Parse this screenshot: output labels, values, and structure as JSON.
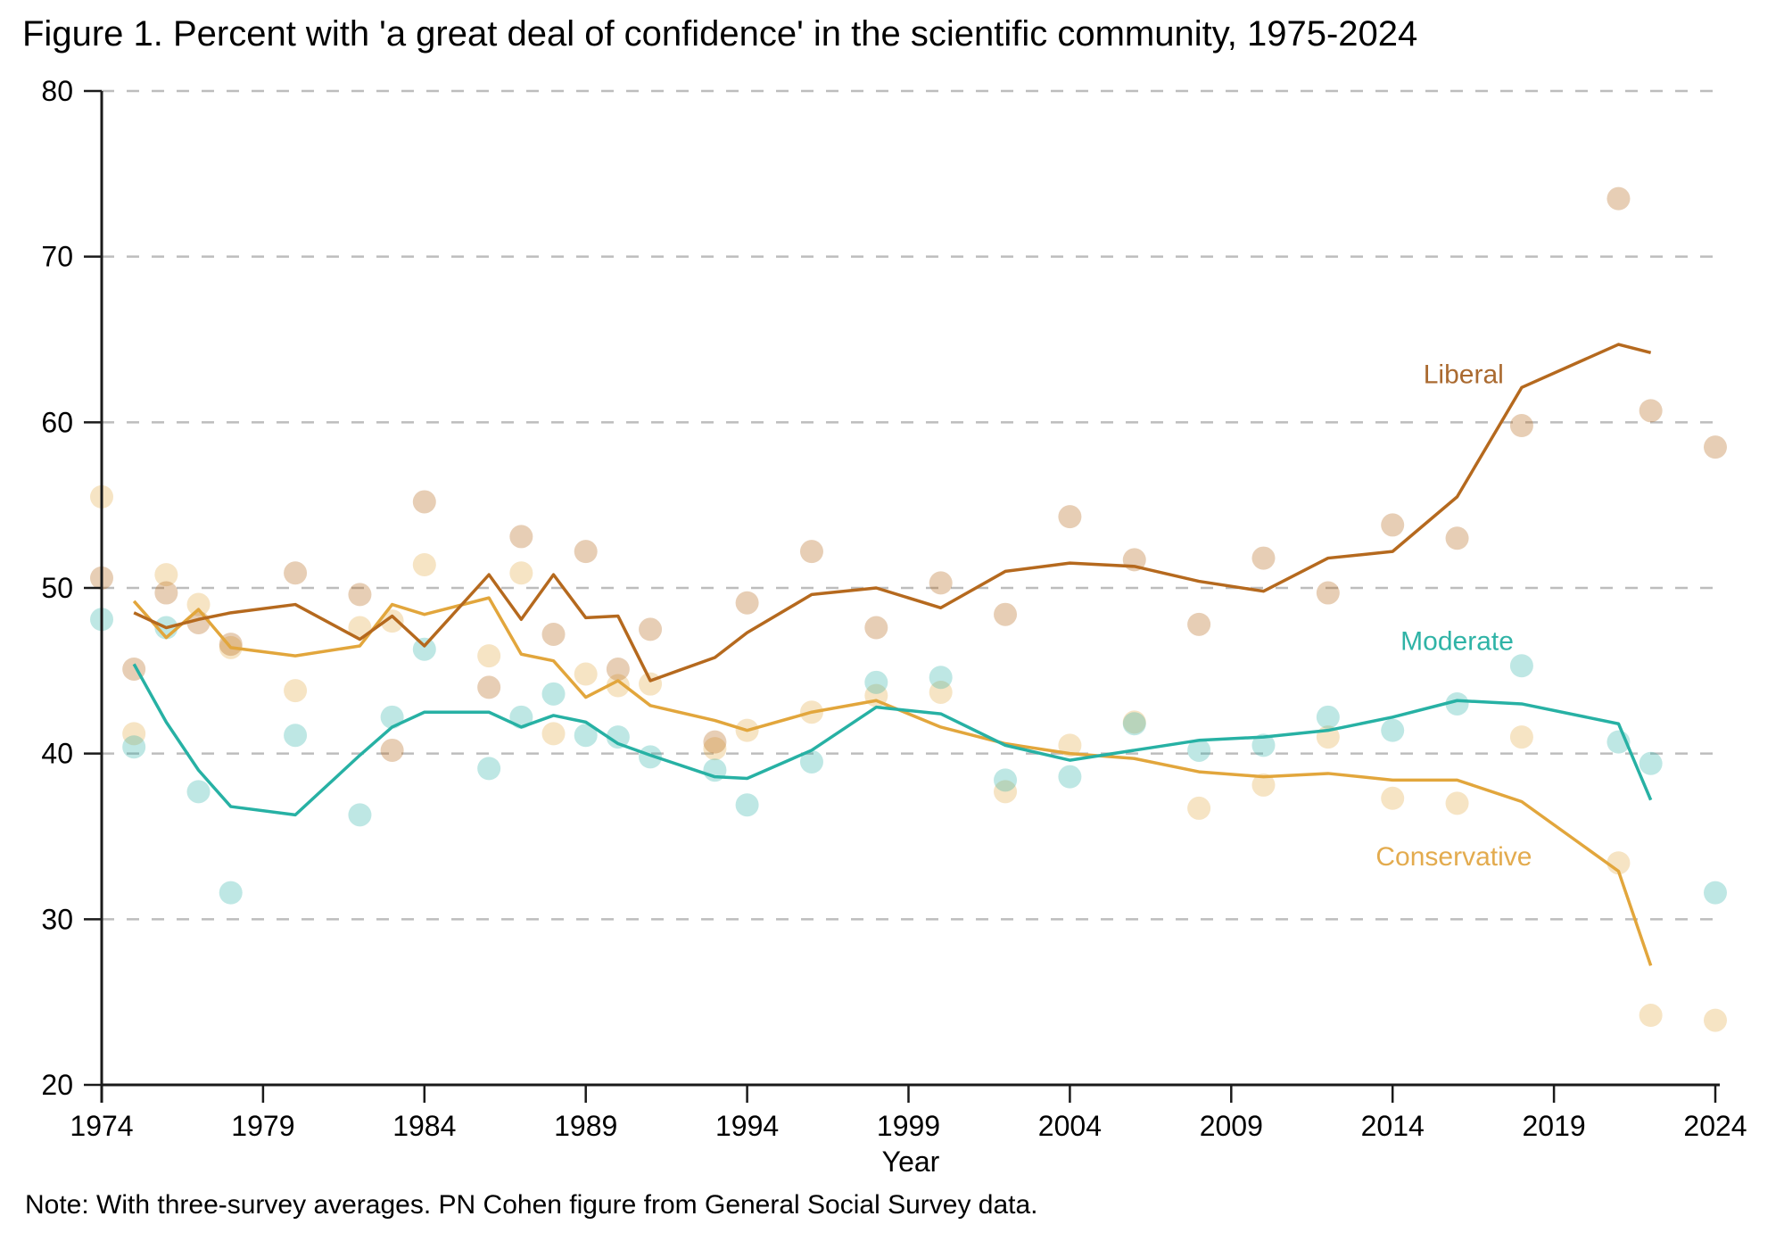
{
  "chart_data": {
    "type": "scatter+line",
    "title": "Figure 1. Percent with 'a great deal of confidence' in the scientific community, 1975-2024",
    "note": "Note: With three-survey averages. PN Cohen figure from General Social Survey data.",
    "xlabel": "Year",
    "ylabel": "",
    "xlim": [
      1974,
      2024.3
    ],
    "ylim": [
      20,
      80
    ],
    "x_ticks": [
      1974,
      1979,
      1984,
      1989,
      1994,
      1999,
      2004,
      2009,
      2014,
      2019,
      2024
    ],
    "y_ticks": [
      20,
      30,
      40,
      50,
      60,
      70,
      80
    ],
    "grid": "horizontal-dashed",
    "legend_position": "inline-right",
    "years": [
      1974,
      1975,
      1976,
      1977,
      1978,
      1980,
      1982,
      1983,
      1984,
      1986,
      1987,
      1988,
      1989,
      1990,
      1991,
      1993,
      1994,
      1996,
      1998,
      2000,
      2002,
      2004,
      2006,
      2008,
      2010,
      2012,
      2014,
      2016,
      2018,
      2021,
      2022,
      2024
    ],
    "line_years": [
      1975,
      1976,
      1977,
      1978,
      1980,
      1982,
      1983,
      1984,
      1986,
      1987,
      1988,
      1989,
      1990,
      1991,
      1993,
      1994,
      1996,
      1998,
      2000,
      2002,
      2004,
      2006,
      2008,
      2010,
      2012,
      2014,
      2016,
      2018,
      2021,
      2022
    ],
    "series": [
      {
        "name": "Conservative",
        "line_color": "#e2a63c",
        "dot_color": "rgba(226,166,60,0.30)",
        "label_color": "#e3ab4e",
        "label_anchor": {
          "year": 2015.9,
          "value": 33.8
        },
        "dot_values": [
          55.5,
          41.2,
          50.8,
          49.0,
          46.4,
          43.8,
          47.6,
          48.0,
          51.4,
          45.9,
          50.9,
          41.2,
          44.8,
          44.1,
          44.2,
          40.3,
          41.4,
          42.5,
          43.5,
          43.7,
          37.7,
          40.5,
          41.9,
          36.7,
          38.1,
          41.0,
          37.3,
          37.0,
          41.0,
          33.4,
          24.2,
          23.9
        ],
        "line_values": [
          49.2,
          47.0,
          48.7,
          46.4,
          45.9,
          46.5,
          49.0,
          48.4,
          49.4,
          46.0,
          45.6,
          43.4,
          44.4,
          42.9,
          42.0,
          41.4,
          42.5,
          43.2,
          41.6,
          40.6,
          40.0,
          39.7,
          38.9,
          38.6,
          38.8,
          38.4,
          38.4,
          37.1,
          32.9,
          27.2
        ]
      },
      {
        "name": "Moderate",
        "line_color": "#27b1a4",
        "dot_color": "rgba(39,177,164,0.30)",
        "label_color": "#2fb3a6",
        "label_anchor": {
          "year": 2016.0,
          "value": 46.8
        },
        "dot_values": [
          48.1,
          40.4,
          47.6,
          37.7,
          31.6,
          41.1,
          36.3,
          42.2,
          46.3,
          39.1,
          42.2,
          43.6,
          41.1,
          41.0,
          39.8,
          39.0,
          36.9,
          39.5,
          44.3,
          44.6,
          38.4,
          38.6,
          41.8,
          40.2,
          40.5,
          42.2,
          41.4,
          43.0,
          45.3,
          40.7,
          39.4,
          31.6
        ],
        "line_values": [
          45.4,
          41.9,
          39.0,
          36.8,
          36.3,
          39.9,
          41.6,
          42.5,
          42.5,
          41.6,
          42.3,
          41.9,
          40.6,
          39.9,
          38.6,
          38.5,
          40.2,
          42.8,
          42.4,
          40.5,
          39.6,
          40.2,
          40.8,
          41.0,
          41.4,
          42.2,
          43.2,
          43.0,
          41.8,
          37.2
        ]
      },
      {
        "name": "Liberal",
        "line_color": "#b5691e",
        "dot_color": "rgba(181,105,30,0.33)",
        "label_color": "#aa6a30",
        "label_anchor": {
          "year": 2016.2,
          "value": 62.9
        },
        "dot_values": [
          50.6,
          45.1,
          49.7,
          47.9,
          46.6,
          50.9,
          49.6,
          40.2,
          55.2,
          44.0,
          53.1,
          47.2,
          52.2,
          45.1,
          47.5,
          40.7,
          49.1,
          52.2,
          47.6,
          50.3,
          48.4,
          54.3,
          51.7,
          47.8,
          51.8,
          49.7,
          53.8,
          53.0,
          59.8,
          73.5,
          60.7,
          58.5
        ],
        "line_values": [
          48.5,
          47.6,
          48.1,
          48.5,
          49.0,
          46.9,
          48.3,
          46.5,
          50.8,
          48.1,
          50.8,
          48.2,
          48.3,
          44.4,
          45.8,
          47.3,
          49.6,
          50.0,
          48.8,
          51.0,
          51.5,
          51.3,
          50.4,
          49.8,
          51.8,
          52.2,
          55.5,
          62.1,
          64.7,
          64.2
        ]
      }
    ],
    "style": {
      "grid_color": "#bdbdbd",
      "axis_color": "#1a1a1a",
      "tick_label_color": "#000000",
      "dot_radius": 13,
      "line_width": 3.5
    }
  }
}
